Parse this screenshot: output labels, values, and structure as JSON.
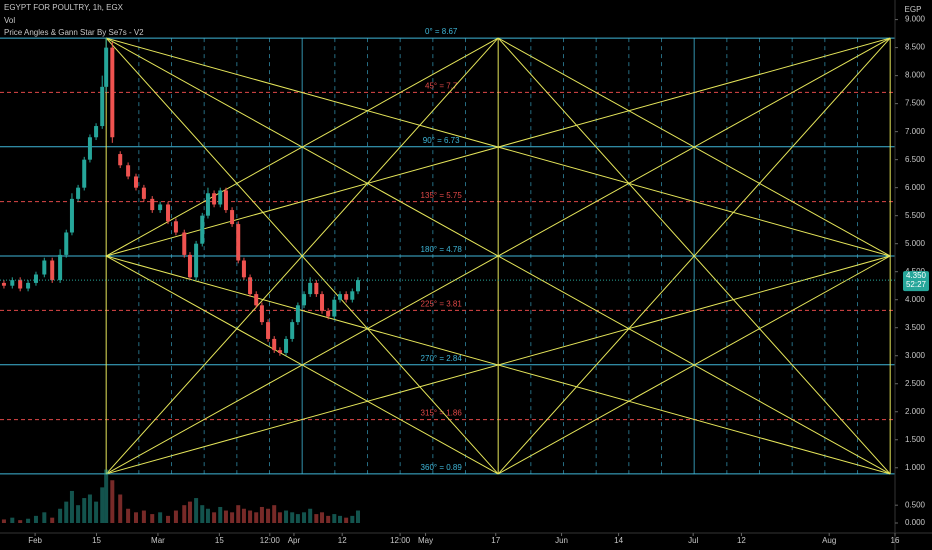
{
  "chart_data": {
    "type": "candlestick",
    "title": "EGYPT FOR POULTRY, 1h, EGX",
    "volume_label": "Vol",
    "indicator": "Price Angles & Gann Star By Se7s - V2",
    "currency": "EGP",
    "up_color": "#26a69a",
    "down_color": "#ef5350",
    "x": [
      -7.1,
      -5.2,
      -3.4,
      -1.6,
      0.2,
      2.1,
      3.9,
      5.7,
      7.1,
      8.4,
      9.8,
      11.2,
      12.5,
      13.9,
      15.3,
      16.2,
      17.6,
      19.4,
      21.2,
      23.0,
      24.8,
      26.7,
      28.5,
      30.3,
      32.1,
      34.0,
      35.3,
      36.7,
      38.1,
      39.4,
      40.8,
      42.2,
      43.5,
      44.9,
      46.3,
      47.6,
      49.0,
      50.4,
      51.7,
      53.1,
      54.5,
      55.8,
      57.2,
      58.6,
      59.9,
      61.3,
      62.7,
      64.1,
      65.4,
      66.8,
      68.2,
      69.5,
      70.9,
      72.3,
      73.6
    ],
    "open": [
      4.3,
      4.25,
      4.35,
      4.2,
      4.3,
      4.45,
      4.7,
      4.35,
      4.8,
      5.2,
      5.8,
      6.0,
      6.5,
      6.9,
      7.1,
      7.8,
      8.5,
      6.6,
      6.4,
      6.2,
      6.0,
      5.8,
      5.6,
      5.7,
      5.4,
      5.2,
      4.8,
      4.4,
      5.0,
      5.5,
      5.9,
      5.7,
      5.95,
      5.6,
      5.35,
      4.7,
      4.4,
      4.1,
      3.9,
      3.6,
      3.3,
      3.1,
      3.05,
      3.3,
      3.6,
      3.9,
      4.1,
      4.3,
      4.1,
      3.8,
      3.7,
      4.0,
      4.1,
      4.0,
      4.15
    ],
    "high": [
      4.35,
      4.4,
      4.4,
      4.35,
      4.5,
      4.75,
      4.75,
      4.9,
      5.25,
      5.9,
      6.05,
      6.55,
      6.95,
      7.15,
      8.0,
      8.67,
      8.6,
      6.65,
      6.45,
      6.25,
      6.05,
      5.85,
      5.75,
      5.75,
      5.45,
      5.25,
      4.85,
      5.05,
      5.55,
      6.0,
      5.95,
      6.0,
      6.0,
      5.65,
      5.4,
      4.75,
      4.45,
      4.15,
      3.95,
      3.65,
      3.35,
      3.15,
      3.35,
      3.65,
      3.95,
      4.15,
      4.4,
      4.35,
      4.15,
      3.85,
      4.05,
      4.15,
      4.15,
      4.2,
      4.4
    ],
    "low": [
      4.2,
      4.2,
      4.15,
      4.15,
      4.25,
      4.4,
      4.3,
      4.3,
      4.75,
      5.15,
      5.75,
      5.95,
      6.45,
      6.85,
      7.05,
      7.7,
      6.8,
      6.35,
      6.15,
      5.95,
      5.75,
      5.55,
      5.55,
      5.35,
      5.15,
      4.75,
      4.35,
      4.35,
      4.95,
      5.45,
      5.65,
      5.65,
      5.55,
      5.3,
      4.65,
      4.35,
      4.05,
      3.85,
      3.55,
      3.25,
      3.05,
      3.0,
      3.0,
      3.25,
      3.55,
      3.85,
      4.05,
      4.05,
      3.75,
      3.65,
      3.65,
      3.95,
      3.95,
      3.95,
      4.1
    ],
    "close": [
      4.25,
      4.35,
      4.2,
      4.3,
      4.45,
      4.7,
      4.35,
      4.8,
      5.2,
      5.8,
      6.0,
      6.5,
      6.9,
      7.1,
      7.8,
      8.5,
      6.9,
      6.4,
      6.2,
      6.0,
      5.8,
      5.6,
      5.7,
      5.4,
      5.2,
      4.8,
      4.4,
      5.0,
      5.5,
      5.9,
      5.7,
      5.95,
      5.6,
      5.35,
      4.7,
      4.4,
      4.1,
      3.9,
      3.6,
      3.3,
      3.1,
      3.05,
      3.3,
      3.6,
      3.9,
      4.1,
      4.3,
      4.1,
      3.8,
      3.7,
      4.0,
      4.1,
      4.0,
      4.15,
      4.35
    ],
    "volume": [
      0.1,
      0.15,
      0.08,
      0.12,
      0.2,
      0.3,
      0.15,
      0.4,
      0.6,
      0.9,
      0.5,
      0.7,
      0.8,
      0.6,
      1.0,
      1.5,
      1.2,
      0.8,
      0.4,
      0.3,
      0.35,
      0.25,
      0.3,
      0.2,
      0.35,
      0.5,
      0.6,
      0.7,
      0.5,
      0.4,
      0.3,
      0.45,
      0.35,
      0.3,
      0.5,
      0.4,
      0.35,
      0.3,
      0.45,
      0.4,
      0.5,
      0.3,
      0.35,
      0.3,
      0.25,
      0.3,
      0.4,
      0.25,
      0.3,
      0.2,
      0.25,
      0.2,
      0.15,
      0.2,
      0.35
    ],
    "xlim": [
      -8,
      196
    ],
    "xticks": [
      {
        "value": 0,
        "label": "Feb"
      },
      {
        "value": 14,
        "label": "15"
      },
      {
        "value": 28,
        "label": "Mar"
      },
      {
        "value": 42,
        "label": "15"
      },
      {
        "value": 53.5,
        "label": "12:00"
      },
      {
        "value": 59,
        "label": "Apr"
      },
      {
        "value": 70,
        "label": "12"
      },
      {
        "value": 83.2,
        "label": "12:00"
      },
      {
        "value": 89,
        "label": "May"
      },
      {
        "value": 105,
        "label": "17"
      },
      {
        "value": 120,
        "label": "Jun"
      },
      {
        "value": 133,
        "label": "14"
      },
      {
        "value": 150,
        "label": "Jul"
      },
      {
        "value": 161,
        "label": "12"
      },
      {
        "value": 181,
        "label": "Aug"
      },
      {
        "value": 196,
        "label": "16"
      }
    ],
    "ylim": [
      -0.2,
      9.35
    ],
    "yticks": [
      {
        "value": 1,
        "label": "1.000"
      },
      {
        "value": 1.5,
        "label": "1.500"
      },
      {
        "value": 2,
        "label": "2.000"
      },
      {
        "value": 2.5,
        "label": "2.500"
      },
      {
        "value": 3,
        "label": "3.000"
      },
      {
        "value": 3.5,
        "label": "3.500"
      },
      {
        "value": 4,
        "label": "4.000"
      },
      {
        "value": 4.5,
        "label": "4.500"
      },
      {
        "value": 5,
        "label": "5.000"
      },
      {
        "value": 5.5,
        "label": "5.500"
      },
      {
        "value": 6,
        "label": "6.000"
      },
      {
        "value": 6.5,
        "label": "6.500"
      },
      {
        "value": 7,
        "label": "7.000"
      },
      {
        "value": 7.5,
        "label": "7.500"
      },
      {
        "value": 8,
        "label": "8.000"
      },
      {
        "value": 8.5,
        "label": "8.500"
      },
      {
        "value": 9,
        "label": "9.000"
      }
    ],
    "volume_ylim": [
      0,
      1.6
    ],
    "volume_yticks": [
      {
        "value": 0,
        "label": "0.000"
      },
      {
        "value": 0.5,
        "label": "0.500"
      }
    ],
    "last_price": {
      "value": 4.35,
      "label": "4.350"
    },
    "countdown": "52:27",
    "gann": {
      "start_x": 16.2,
      "end_x": 194.9,
      "color": "#e6e65a",
      "levels": [
        {
          "value": 8.67,
          "label": "0° = 8.67",
          "color": "#3fb6d8",
          "dashed": false
        },
        {
          "value": 7.7,
          "label": "45° = 7.7",
          "color": "#e04848",
          "dashed": true
        },
        {
          "value": 6.73,
          "label": "90° = 6.73",
          "color": "#3fb6d8",
          "dashed": false
        },
        {
          "value": 5.75,
          "label": "135° = 5.75",
          "color": "#e04848",
          "dashed": true
        },
        {
          "value": 4.78,
          "label": "180° = 4.78",
          "color": "#3fb6d8",
          "dashed": false
        },
        {
          "value": 3.81,
          "label": "225° = 3.81",
          "color": "#e04848",
          "dashed": true
        },
        {
          "value": 2.84,
          "label": "270° = 2.84",
          "color": "#3fb6d8",
          "dashed": false
        },
        {
          "value": 1.86,
          "label": "315° = 1.86",
          "color": "#e04848",
          "dashed": true
        },
        {
          "value": 0.89,
          "label": "360° = 0.89",
          "color": "#3fb6d8",
          "dashed": false
        }
      ]
    }
  }
}
